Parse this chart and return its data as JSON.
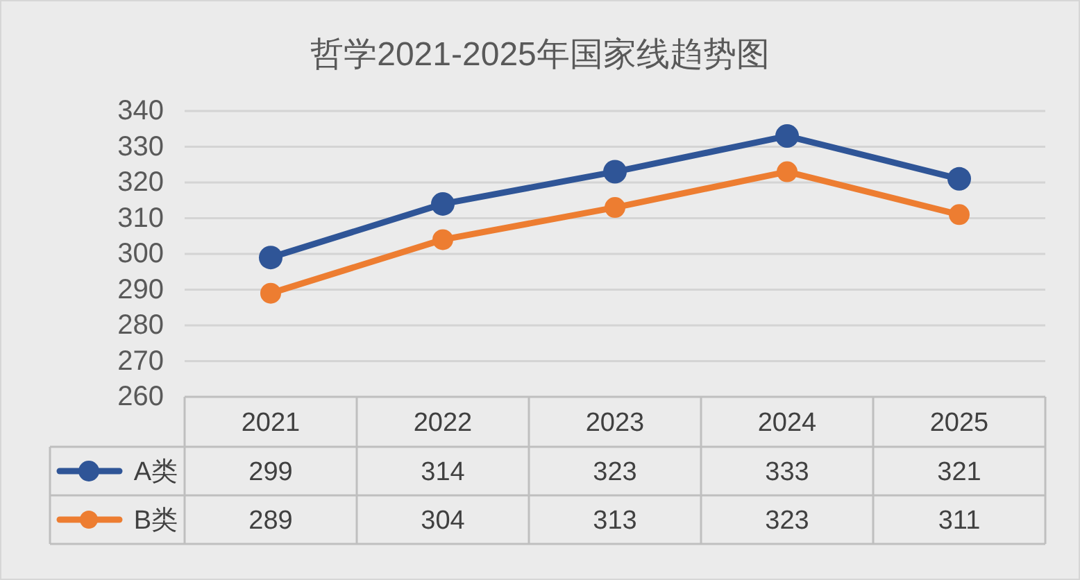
{
  "chart_data": {
    "type": "line",
    "title": "哲学2021-2025年国家线趋势图",
    "categories": [
      "2021",
      "2022",
      "2023",
      "2024",
      "2025"
    ],
    "series": [
      {
        "name": "A类",
        "color": "#2f5597",
        "values": [
          299,
          314,
          323,
          333,
          321
        ]
      },
      {
        "name": "B类",
        "color": "#ed7d31",
        "values": [
          289,
          304,
          313,
          323,
          311
        ]
      }
    ],
    "ylim": [
      260,
      340
    ],
    "yticks": [
      260,
      270,
      280,
      290,
      300,
      310,
      320,
      330,
      340
    ],
    "grid": "y",
    "legend": "bottom",
    "marker": "circle",
    "line_style": "solid",
    "data_labels": true
  }
}
